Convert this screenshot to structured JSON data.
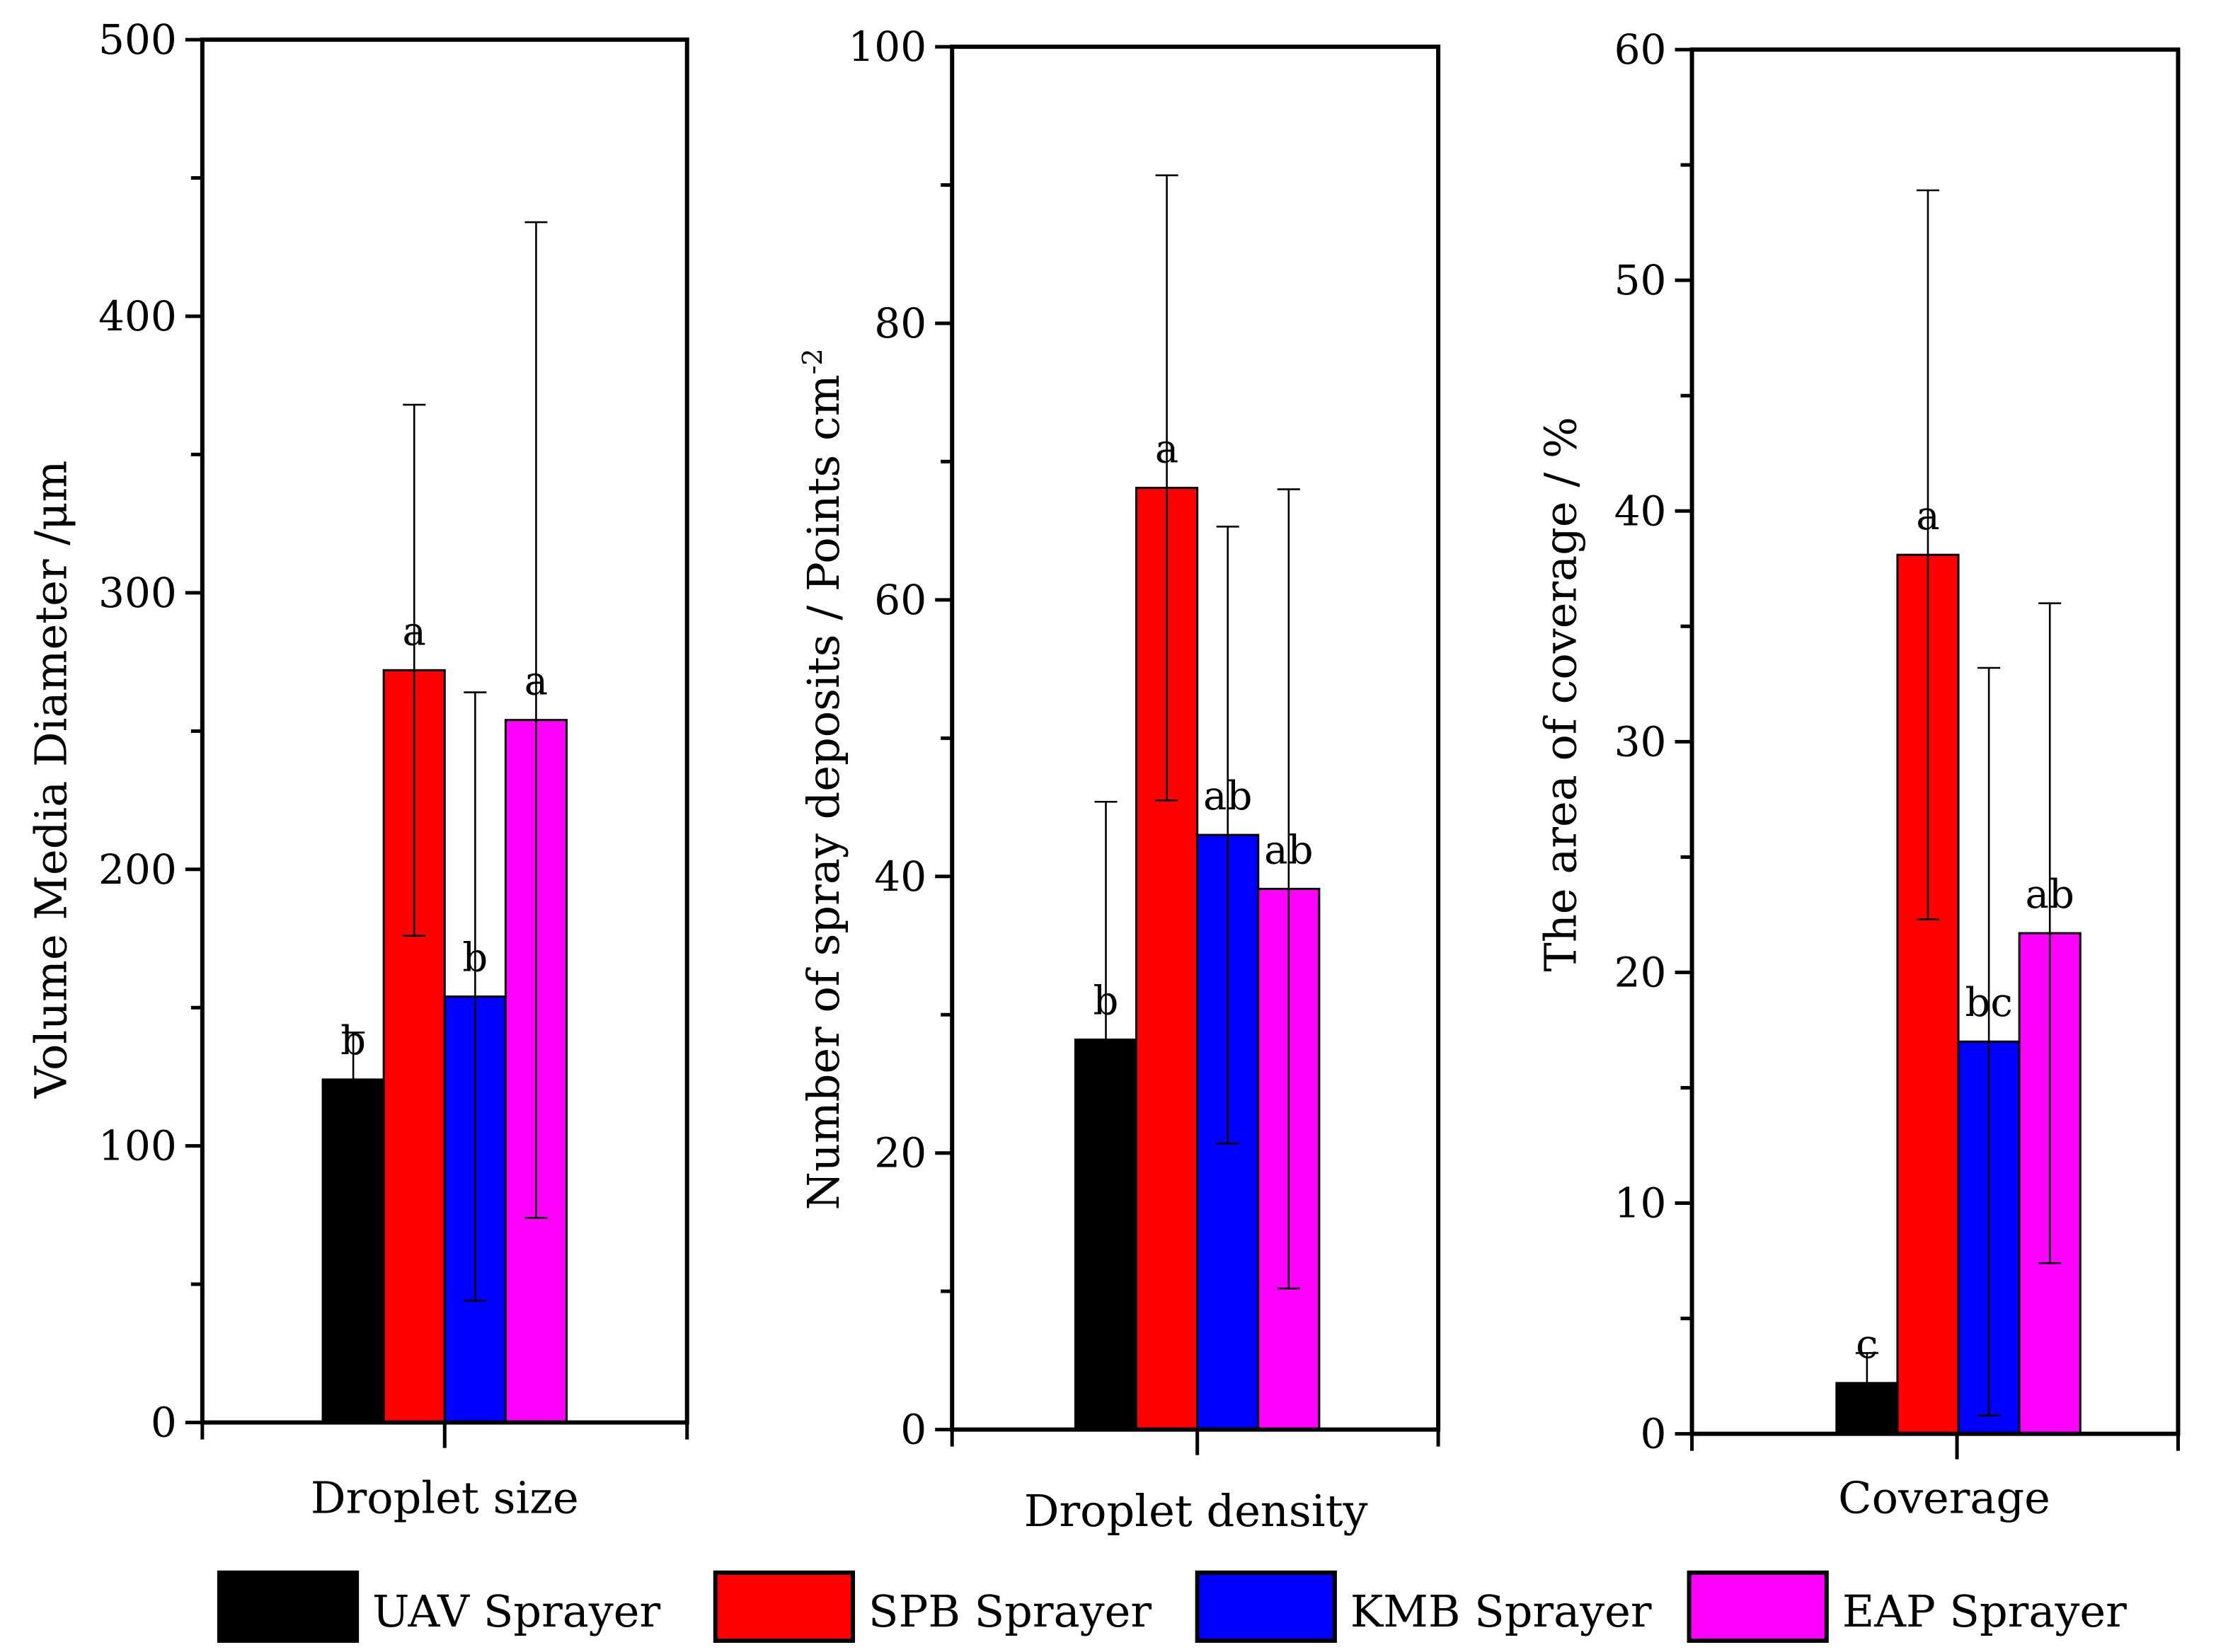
{
  "chart_data": [
    {
      "type": "bar",
      "xlabel": "Droplet size",
      "ylabel": "Volume Media Diameter /μm",
      "ylim": [
        0,
        500
      ],
      "yticks": [
        0,
        100,
        200,
        300,
        400,
        500
      ],
      "categories": [
        "UAV Sprayer",
        "SPB Sprayer",
        "KMB Sprayer",
        "EAP Sprayer"
      ],
      "values": [
        124,
        272,
        154,
        254
      ],
      "errors": [
        17,
        96,
        110,
        180
      ],
      "letters": [
        "b",
        "a",
        "b",
        "a"
      ]
    },
    {
      "type": "bar",
      "xlabel": "Droplet density",
      "ylabel": "Number of spray deposits / Points cm",
      "ylabel_sup": "-2",
      "ylim": [
        0,
        100
      ],
      "yticks": [
        0,
        20,
        40,
        60,
        80,
        100
      ],
      "categories": [
        "UAV Sprayer",
        "SPB Sprayer",
        "KMB Sprayer",
        "EAP Sprayer"
      ],
      "values": [
        28.2,
        68.1,
        43.0,
        39.1
      ],
      "errors": [
        17.2,
        22.6,
        22.3,
        28.9
      ],
      "letters": [
        "b",
        "a",
        "ab",
        "ab"
      ]
    },
    {
      "type": "bar",
      "xlabel": "Coverage",
      "ylabel": "The area of coverage / %",
      "ylim": [
        0,
        60
      ],
      "yticks": [
        0,
        10,
        20,
        30,
        40,
        50,
        60
      ],
      "categories": [
        "UAV Sprayer",
        "SPB Sprayer",
        "KMB Sprayer",
        "EAP Sprayer"
      ],
      "values": [
        2.2,
        38.1,
        17.0,
        21.7
      ],
      "errors": [
        1.3,
        15.8,
        16.2,
        14.3
      ],
      "letters": [
        "c",
        "a",
        "bc",
        "ab"
      ]
    }
  ],
  "legend": [
    {
      "label": "UAV Sprayer",
      "color": "#000000"
    },
    {
      "label": "SPB   Sprayer",
      "color": "#ff0000"
    },
    {
      "label": "KMB Sprayer",
      "color": "#0000ff"
    },
    {
      "label": "EAP  Sprayer",
      "color": "#ff00ff"
    }
  ]
}
